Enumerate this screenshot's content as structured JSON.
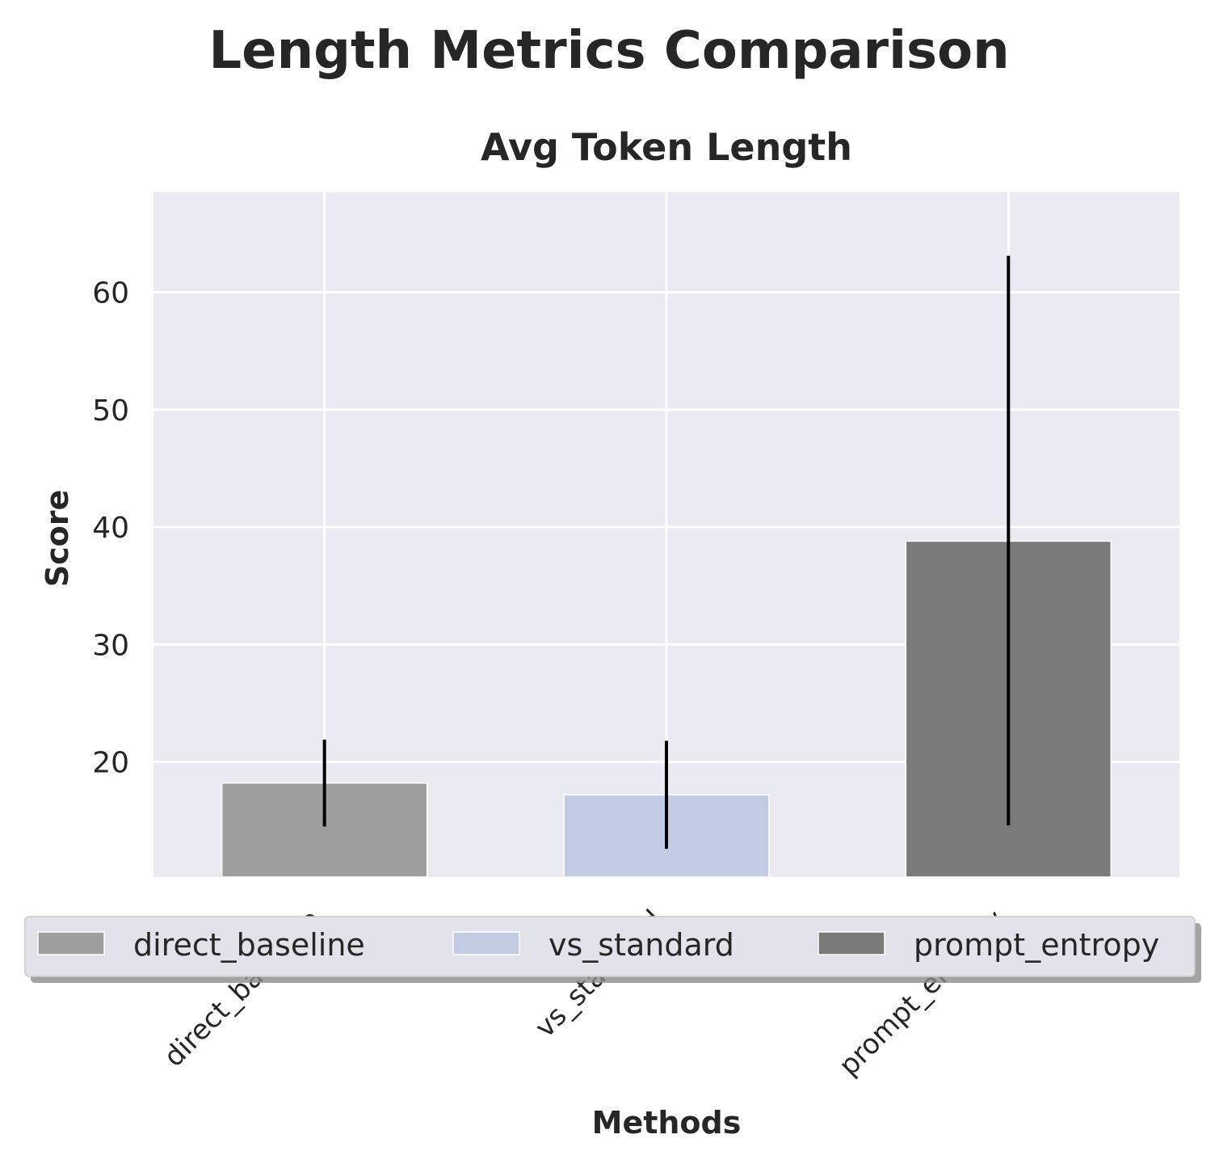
{
  "chart_data": {
    "type": "bar",
    "title": "Length Metrics Comparison",
    "subtitle": "Avg Token Length",
    "xlabel": "Methods",
    "ylabel": "Score",
    "categories": [
      "direct_baseline",
      "vs_standard",
      "prompt_entropy"
    ],
    "values": [
      18.2,
      17.2,
      38.8
    ],
    "error_low": [
      14.5,
      12.6,
      14.6
    ],
    "error_high": [
      21.9,
      21.8,
      63.1
    ],
    "ylim": [
      10.2,
      68.5
    ],
    "yticks": [
      20,
      30,
      40,
      50,
      60
    ],
    "grid": true,
    "legend": {
      "placement": "bottom-center",
      "entries": [
        "direct_baseline",
        "vs_standard",
        "prompt_entropy"
      ]
    },
    "colors": {
      "direct_baseline": "#9e9e9e",
      "vs_standard": "#c1cbe4",
      "prompt_entropy": "#7a7a7a",
      "plot_background": "#eaeaf2",
      "grid": "#ffffff",
      "error_bar": "#000000"
    }
  }
}
